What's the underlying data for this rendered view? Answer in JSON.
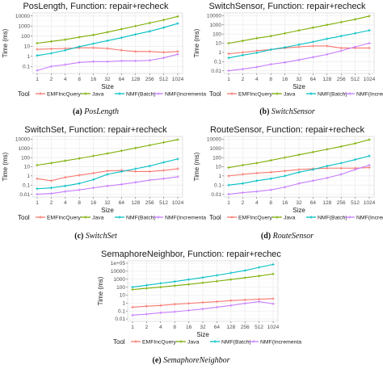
{
  "colors": {
    "EMFIncQuery": "#f8766d",
    "Java": "#7cae00",
    "NMF(Batch)": "#00bfc4",
    "NMF(Incremental)": "#c77cff",
    "grid_major": "#ebebeb",
    "grid_minor": "#f5f5f5",
    "axis": "#333333"
  },
  "legend": {
    "title": "Tool",
    "entries": [
      "EMFIncQuery",
      "Java",
      "NMF(Batch)",
      "NMF(Incrementa"
    ]
  },
  "chart_data": [
    {
      "type": "line",
      "title": "PosLength, Function: repair+recheck",
      "xlabel": "Size",
      "ylabel": "Time (ms)",
      "y_scale": "log",
      "ylim": [
        0.02,
        20000
      ],
      "y_ticks": [
        "0.1",
        "1",
        "10",
        "100",
        "1000",
        "10000"
      ],
      "categories": [
        "1",
        "2",
        "4",
        "8",
        "16",
        "32",
        "64",
        "128",
        "256",
        "512",
        "1024"
      ],
      "series": [
        {
          "name": "EMFIncQuery",
          "values": [
            5,
            5.5,
            6,
            7,
            7,
            6,
            4,
            3,
            3,
            2.5,
            3
          ]
        },
        {
          "name": "Java",
          "values": [
            20,
            30,
            45,
            80,
            130,
            250,
            500,
            1000,
            2000,
            4000,
            9000
          ]
        },
        {
          "name": "NMF(Batch)",
          "values": [
            1.2,
            2,
            4,
            9,
            18,
            35,
            70,
            150,
            300,
            700,
            1800
          ]
        },
        {
          "name": "NMF(Incremental)",
          "values": [
            0.04,
            0.1,
            0.15,
            0.25,
            0.3,
            0.3,
            0.35,
            0.35,
            0.4,
            0.7,
            1.6
          ]
        }
      ]
    },
    {
      "type": "line",
      "title": "SwitchSensor, Function: repair+recheck",
      "xlabel": "Size",
      "ylabel": "Time (ms)",
      "y_scale": "log",
      "ylim": [
        0.005,
        20000
      ],
      "y_ticks": [
        "0.01",
        "0.1",
        "1",
        "10",
        "100",
        "1000",
        "10000"
      ],
      "categories": [
        "1",
        "2",
        "4",
        "8",
        "16",
        "32",
        "64",
        "128",
        "256",
        "512",
        "1024"
      ],
      "series": [
        {
          "name": "EMFIncQuery",
          "values": [
            0.7,
            1,
            1.5,
            2,
            3,
            4,
            5,
            5,
            3,
            3,
            3
          ]
        },
        {
          "name": "Java",
          "values": [
            10,
            18,
            35,
            60,
            120,
            250,
            500,
            1000,
            2000,
            4000,
            9000
          ]
        },
        {
          "name": "NMF(Batch)",
          "values": [
            0.25,
            0.5,
            0.9,
            2,
            3.5,
            7,
            14,
            30,
            60,
            120,
            250
          ]
        },
        {
          "name": "NMF(Incremental)",
          "values": [
            0.01,
            0.015,
            0.025,
            0.05,
            0.08,
            0.15,
            0.3,
            0.6,
            1.5,
            4,
            10
          ]
        }
      ]
    },
    {
      "type": "line",
      "title": "SwitchSet, Function: repair+recheck",
      "xlabel": "Size",
      "ylabel": "Time (ms)",
      "y_scale": "log",
      "ylim": [
        0.005,
        20000
      ],
      "y_ticks": [
        "0.01",
        "0.1",
        "1",
        "10",
        "100",
        "1000",
        "10000"
      ],
      "categories": [
        "1",
        "2",
        "4",
        "8",
        "16",
        "32",
        "64",
        "128",
        "256",
        "512",
        "1024"
      ],
      "series": [
        {
          "name": "EMFIncQuery",
          "values": [
            0.5,
            0.3,
            0.7,
            1.2,
            2,
            3.5,
            4,
            3,
            3,
            4,
            6
          ]
        },
        {
          "name": "Java",
          "values": [
            15,
            25,
            45,
            80,
            150,
            280,
            550,
            1100,
            2200,
            4500,
            9000
          ]
        },
        {
          "name": "NMF(Batch)",
          "values": [
            0.04,
            0.05,
            0.08,
            0.15,
            0.4,
            1.5,
            3,
            6,
            12,
            30,
            70
          ]
        },
        {
          "name": "NMF(Incremental)",
          "values": [
            0.01,
            0.012,
            0.02,
            0.03,
            0.05,
            0.08,
            0.12,
            0.2,
            0.35,
            0.5,
            0.8
          ]
        }
      ]
    },
    {
      "type": "line",
      "title": "RouteSensor, Function: repair+recheck",
      "xlabel": "Size",
      "ylabel": "Time (ms)",
      "y_scale": "log",
      "ylim": [
        0.005,
        20000
      ],
      "y_ticks": [
        "0.01",
        "0.1",
        "1",
        "10",
        "100",
        "1000",
        "10000"
      ],
      "categories": [
        "1",
        "2",
        "4",
        "8",
        "16",
        "32",
        "64",
        "128",
        "256",
        "512",
        "1024"
      ],
      "series": [
        {
          "name": "EMFIncQuery",
          "values": [
            1,
            1.5,
            2,
            2.5,
            3.5,
            5,
            6,
            7,
            7,
            7,
            8
          ]
        },
        {
          "name": "Java",
          "values": [
            8,
            15,
            25,
            50,
            100,
            200,
            400,
            800,
            1600,
            3500,
            9000
          ]
        },
        {
          "name": "NMF(Batch)",
          "values": [
            0.1,
            0.15,
            0.3,
            0.5,
            1,
            2.5,
            5,
            12,
            25,
            60,
            150
          ]
        },
        {
          "name": "NMF(Incremental)",
          "values": [
            0.01,
            0.015,
            0.02,
            0.03,
            0.06,
            0.15,
            0.3,
            0.6,
            1.5,
            5,
            15
          ]
        }
      ]
    },
    {
      "type": "line",
      "title": "SemaphoreNeighbor, Function: repair+rechec",
      "xlabel": "Size",
      "ylabel": "Time (ms)",
      "y_scale": "log",
      "ylim": [
        0.005,
        200000
      ],
      "y_ticks": [
        "0.01",
        "0.1",
        "1",
        "10",
        "100",
        "1000",
        "10000",
        "1e+05"
      ],
      "categories": [
        "1",
        "2",
        "4",
        "8",
        "16",
        "32",
        "64",
        "128",
        "256",
        "512",
        "1024"
      ],
      "series": [
        {
          "name": "EMFIncQuery",
          "values": [
            0.3,
            0.4,
            0.5,
            0.7,
            0.9,
            1.2,
            1.5,
            2,
            2.5,
            3,
            3.5
          ]
        },
        {
          "name": "Java",
          "values": [
            50,
            70,
            100,
            150,
            220,
            350,
            550,
            900,
            1500,
            2500,
            4500
          ]
        },
        {
          "name": "NMF(Batch)",
          "values": [
            100,
            170,
            300,
            500,
            900,
            1600,
            3000,
            6000,
            12000,
            30000,
            70000
          ]
        },
        {
          "name": "NMF(Incremental)",
          "values": [
            0.03,
            0.04,
            0.06,
            0.08,
            0.12,
            0.18,
            0.3,
            0.5,
            0.9,
            1.5,
            0.8
          ]
        }
      ]
    }
  ],
  "captions": [
    {
      "tag": "(a)",
      "name": "PosLength"
    },
    {
      "tag": "(b)",
      "name": "SwitchSensor"
    },
    {
      "tag": "(c)",
      "name": "SwitchSet"
    },
    {
      "tag": "(d)",
      "name": "RouteSensor"
    },
    {
      "tag": "(e)",
      "name": "SemaphoreNeighbor"
    }
  ]
}
